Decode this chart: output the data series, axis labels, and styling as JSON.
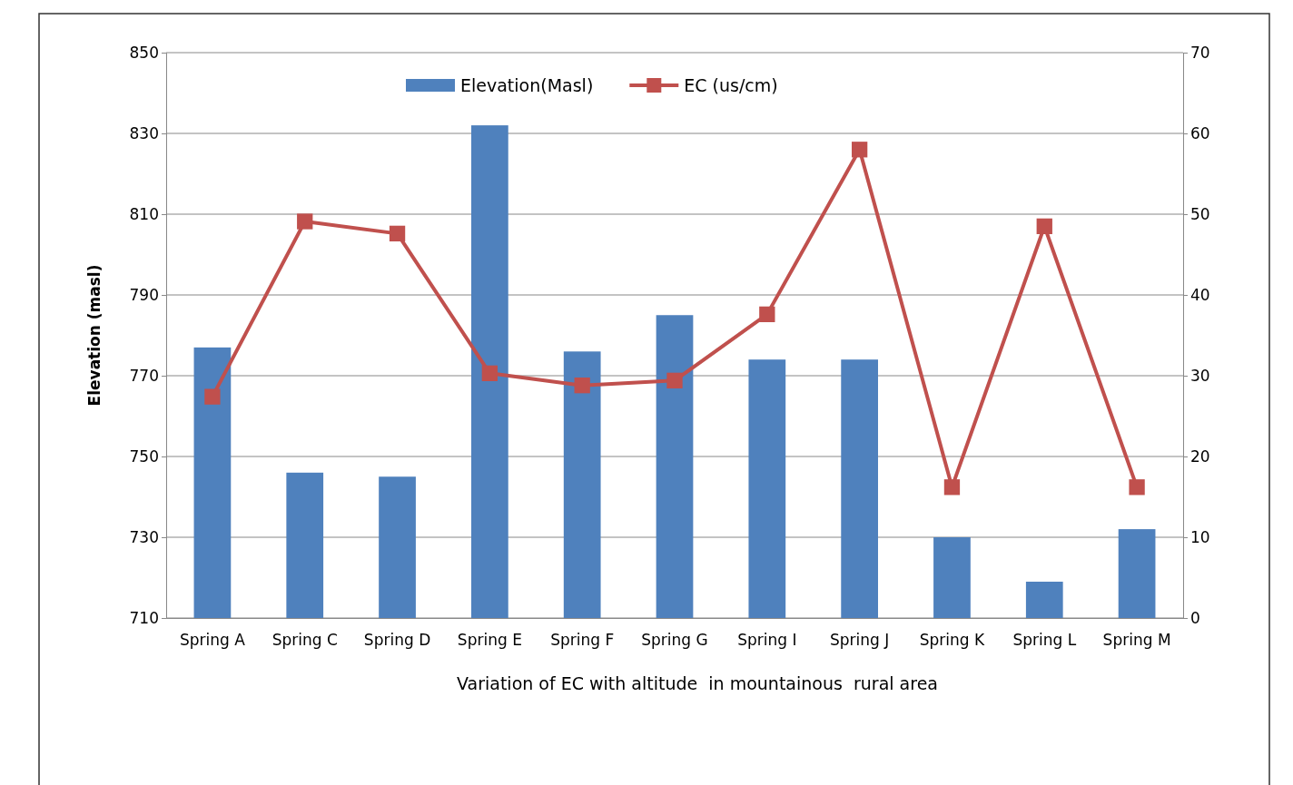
{
  "chart_data": {
    "type": "bar",
    "xlabel": "Variation of EC with altitude  in mountainous  rural area",
    "ylabel": "Elevation  (masl)",
    "categories": [
      "Spring A",
      "Spring C",
      "Spring D",
      "Spring E",
      "Spring F",
      "Spring G",
      "Spring I",
      "Spring J",
      "Spring K",
      "Spring L",
      "Spring M"
    ],
    "series": [
      {
        "name": "Elevation(Masl)",
        "color": "#4f81bd",
        "values": [
          777,
          746,
          745,
          832,
          776,
          785,
          774,
          774,
          730,
          719,
          732
        ]
      },
      {
        "name": "EC (us/cm)",
        "type": "line",
        "axis": "y2",
        "color": "#c0504d",
        "marker": "square",
        "values": [
          27.4,
          49.1,
          47.6,
          30.3,
          28.8,
          29.4,
          37.6,
          58,
          16.2,
          48.5,
          16.2
        ]
      }
    ],
    "ylim": [
      710,
      850
    ],
    "yticks": [
      710,
      730,
      750,
      770,
      790,
      810,
      830,
      850
    ],
    "y2lim": [
      0,
      70
    ],
    "y2ticks": [
      0,
      10,
      20,
      30,
      40,
      50,
      60,
      70
    ],
    "grid": "y",
    "legend": "top"
  }
}
